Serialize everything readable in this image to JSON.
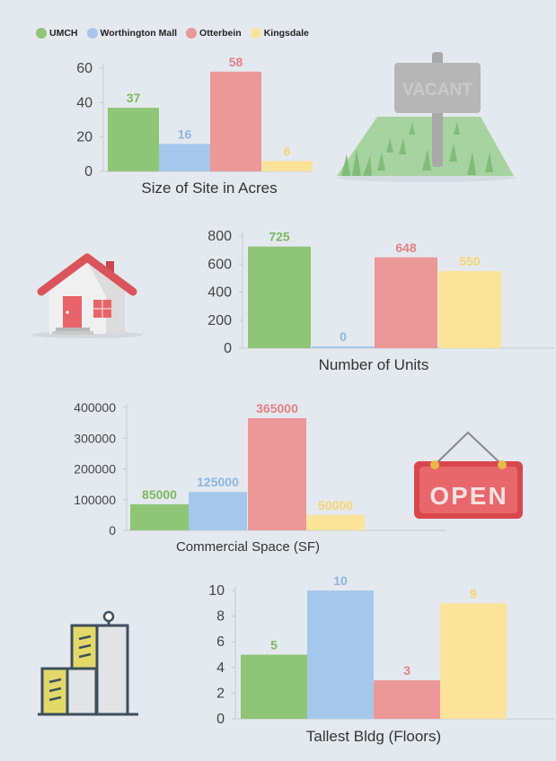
{
  "legend": [
    {
      "name": "UMCH",
      "color": "#8fc577"
    },
    {
      "name": "Worthington Mall",
      "color": "#a5c8ea"
    },
    {
      "name": "Otterbein",
      "color": "#ec9798"
    },
    {
      "name": "Kingsdale",
      "color": "#fce39a"
    }
  ],
  "illustrations": {
    "vacant_sign_text": "VACANT",
    "open_sign_text": "OPEN"
  },
  "chart_data": [
    {
      "type": "bar",
      "categories": [
        "UMCH",
        "Worthington Mall",
        "Otterbein",
        "Kingsdale"
      ],
      "values": [
        37,
        16,
        58,
        6
      ],
      "xlabel": "Size of Site in Acres",
      "ylim": [
        0,
        60
      ],
      "yticks": [
        "0",
        "20",
        "40",
        "60"
      ],
      "colors": [
        "#8fc577",
        "#a5c8ea",
        "#ec9798",
        "#fce39a"
      ],
      "label_colors": [
        "#7bb95f",
        "#8ab7e3",
        "#e57f81",
        "#f6d672"
      ]
    },
    {
      "type": "bar",
      "categories": [
        "UMCH",
        "Worthington Mall",
        "Otterbein",
        "Kingsdale"
      ],
      "values": [
        725,
        0,
        648,
        550
      ],
      "xlabel": "Number of Units",
      "ylim": [
        0,
        800
      ],
      "yticks": [
        "0",
        "200",
        "400",
        "600",
        "800"
      ],
      "colors": [
        "#8fc577",
        "#a5c8ea",
        "#ec9798",
        "#fce39a"
      ],
      "label_colors": [
        "#7bb95f",
        "#8ab7e3",
        "#e57f81",
        "#f6d672"
      ]
    },
    {
      "type": "bar",
      "categories": [
        "UMCH",
        "Worthington Mall",
        "Otterbein",
        "Kingsdale"
      ],
      "values": [
        85000,
        125000,
        365000,
        50000
      ],
      "xlabel": "Commercial Space (SF)",
      "ylim": [
        0,
        400000
      ],
      "yticks": [
        "0",
        "100000",
        "200000",
        "300000",
        "400000"
      ],
      "colors": [
        "#8fc577",
        "#a5c8ea",
        "#ec9798",
        "#fce39a"
      ],
      "label_colors": [
        "#7bb95f",
        "#8ab7e3",
        "#e57f81",
        "#f6d672"
      ]
    },
    {
      "type": "bar",
      "categories": [
        "UMCH",
        "Worthington Mall",
        "Otterbein",
        "Kingsdale"
      ],
      "values": [
        5,
        10,
        3,
        9
      ],
      "xlabel": "Tallest Bldg (Floors)",
      "ylim": [
        0,
        10
      ],
      "yticks": [
        "0",
        "2",
        "4",
        "6",
        "8",
        "10"
      ],
      "colors": [
        "#8fc577",
        "#a5c8ea",
        "#ec9798",
        "#fce39a"
      ],
      "label_colors": [
        "#7bb95f",
        "#8ab7e3",
        "#e57f81",
        "#f6d672"
      ]
    }
  ]
}
